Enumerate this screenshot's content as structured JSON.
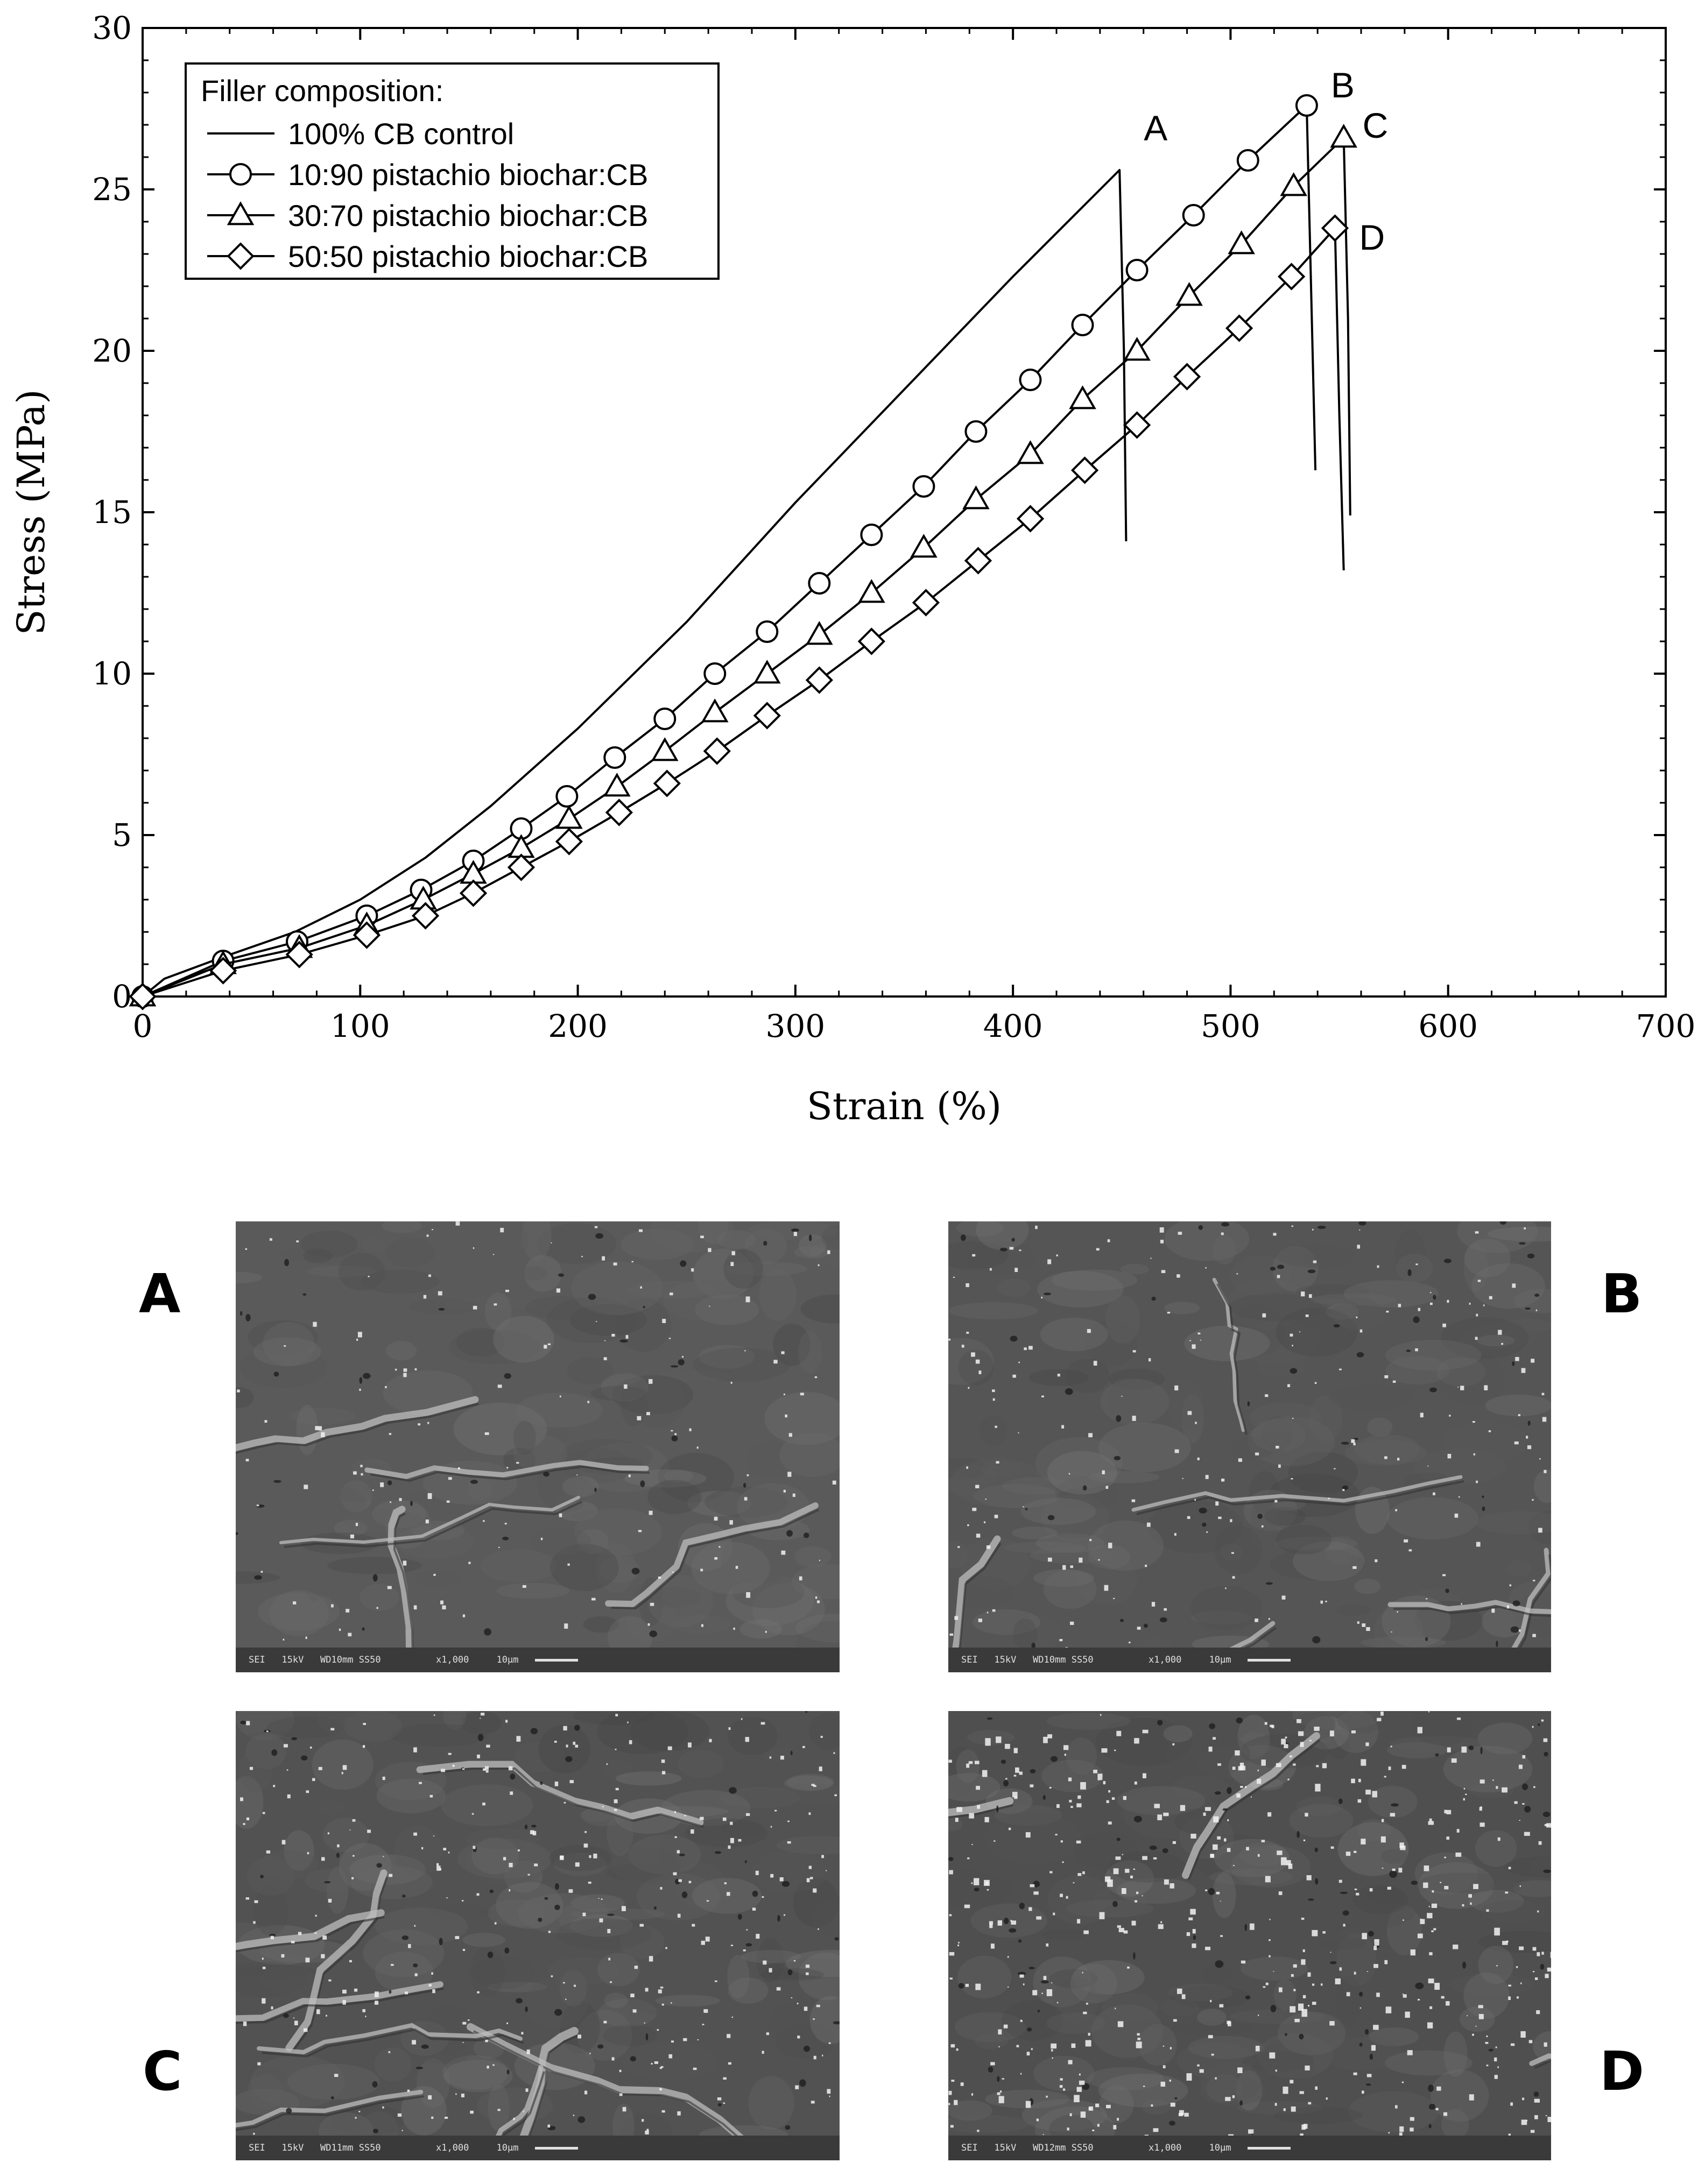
{
  "chart_data": {
    "type": "line",
    "xlabel": "Strain (%)",
    "ylabel": "Stress (MPa)",
    "xlim": [
      0,
      700
    ],
    "ylim": [
      0,
      30
    ],
    "xticks": [
      0,
      100,
      200,
      300,
      400,
      500,
      600,
      700
    ],
    "yticks": [
      0,
      5,
      10,
      15,
      20,
      25,
      30
    ],
    "grid": false,
    "legend": {
      "title": "Filler composition:",
      "placement": "top-left"
    },
    "series": [
      {
        "name": "100% CB control",
        "marker": "none",
        "end_label": "A",
        "x": [
          0,
          10,
          36,
          70,
          100,
          130,
          160,
          200,
          250,
          300,
          350,
          400,
          449,
          451,
          452
        ],
        "y": [
          0,
          0.55,
          1.2,
          2.0,
          3.0,
          4.3,
          5.9,
          8.3,
          11.6,
          15.3,
          18.8,
          22.3,
          25.6,
          20.0,
          14.1
        ]
      },
      {
        "name": "10:90 pistachio biochar:CB",
        "marker": "circle",
        "end_label": "B",
        "x": [
          0,
          37,
          71,
          103,
          128,
          152,
          174,
          195,
          217,
          240,
          263,
          287,
          311,
          335,
          359,
          383,
          408,
          432,
          457,
          483,
          508,
          535,
          537,
          539
        ],
        "y": [
          0,
          1.1,
          1.7,
          2.5,
          3.3,
          4.2,
          5.2,
          6.2,
          7.4,
          8.6,
          10.0,
          11.3,
          12.8,
          14.3,
          15.8,
          17.5,
          19.1,
          20.8,
          22.5,
          24.2,
          25.9,
          27.6,
          22.0,
          16.3
        ]
      },
      {
        "name": "30:70 pistachio biochar:CB",
        "marker": "triangle",
        "end_label": "C",
        "x": [
          0,
          37,
          72,
          103,
          129,
          152,
          174,
          196,
          218,
          240,
          263,
          287,
          311,
          335,
          359,
          383,
          408,
          432,
          457,
          481,
          505,
          529,
          552,
          554,
          555
        ],
        "y": [
          0,
          1.0,
          1.5,
          2.2,
          3.0,
          3.8,
          4.6,
          5.5,
          6.5,
          7.6,
          8.8,
          10.0,
          11.2,
          12.5,
          13.9,
          15.4,
          16.8,
          18.5,
          20.0,
          21.7,
          23.3,
          25.1,
          26.6,
          21.0,
          14.9
        ]
      },
      {
        "name": "50:50 pistachio biochar:CB",
        "marker": "diamond",
        "end_label": "D",
        "x": [
          0,
          37,
          72,
          103,
          130,
          152,
          174,
          196,
          219,
          241,
          264,
          287,
          311,
          335,
          360,
          384,
          408,
          433,
          457,
          480,
          504,
          528,
          548,
          550,
          552
        ],
        "y": [
          0,
          0.8,
          1.3,
          1.9,
          2.5,
          3.2,
          4.0,
          4.8,
          5.7,
          6.6,
          7.6,
          8.7,
          9.8,
          11.0,
          12.2,
          13.5,
          14.8,
          16.3,
          17.7,
          19.2,
          20.7,
          22.3,
          23.8,
          18.0,
          13.2
        ]
      }
    ]
  },
  "panels": [
    {
      "letter": "A",
      "caption": "SEI   15kV   WD10mm SS50          x1,000     10μm"
    },
    {
      "letter": "B",
      "caption": "SEI   15kV   WD10mm SS50          x1,000     10μm"
    },
    {
      "letter": "C",
      "caption": "SEI   15kV   WD11mm SS50          x1,000     10μm"
    },
    {
      "letter": "D",
      "caption": "SEI   15kV   WD12mm SS50          x1,000     10μm"
    }
  ],
  "colors": {
    "line": "#000000",
    "background": "#ffffff"
  }
}
